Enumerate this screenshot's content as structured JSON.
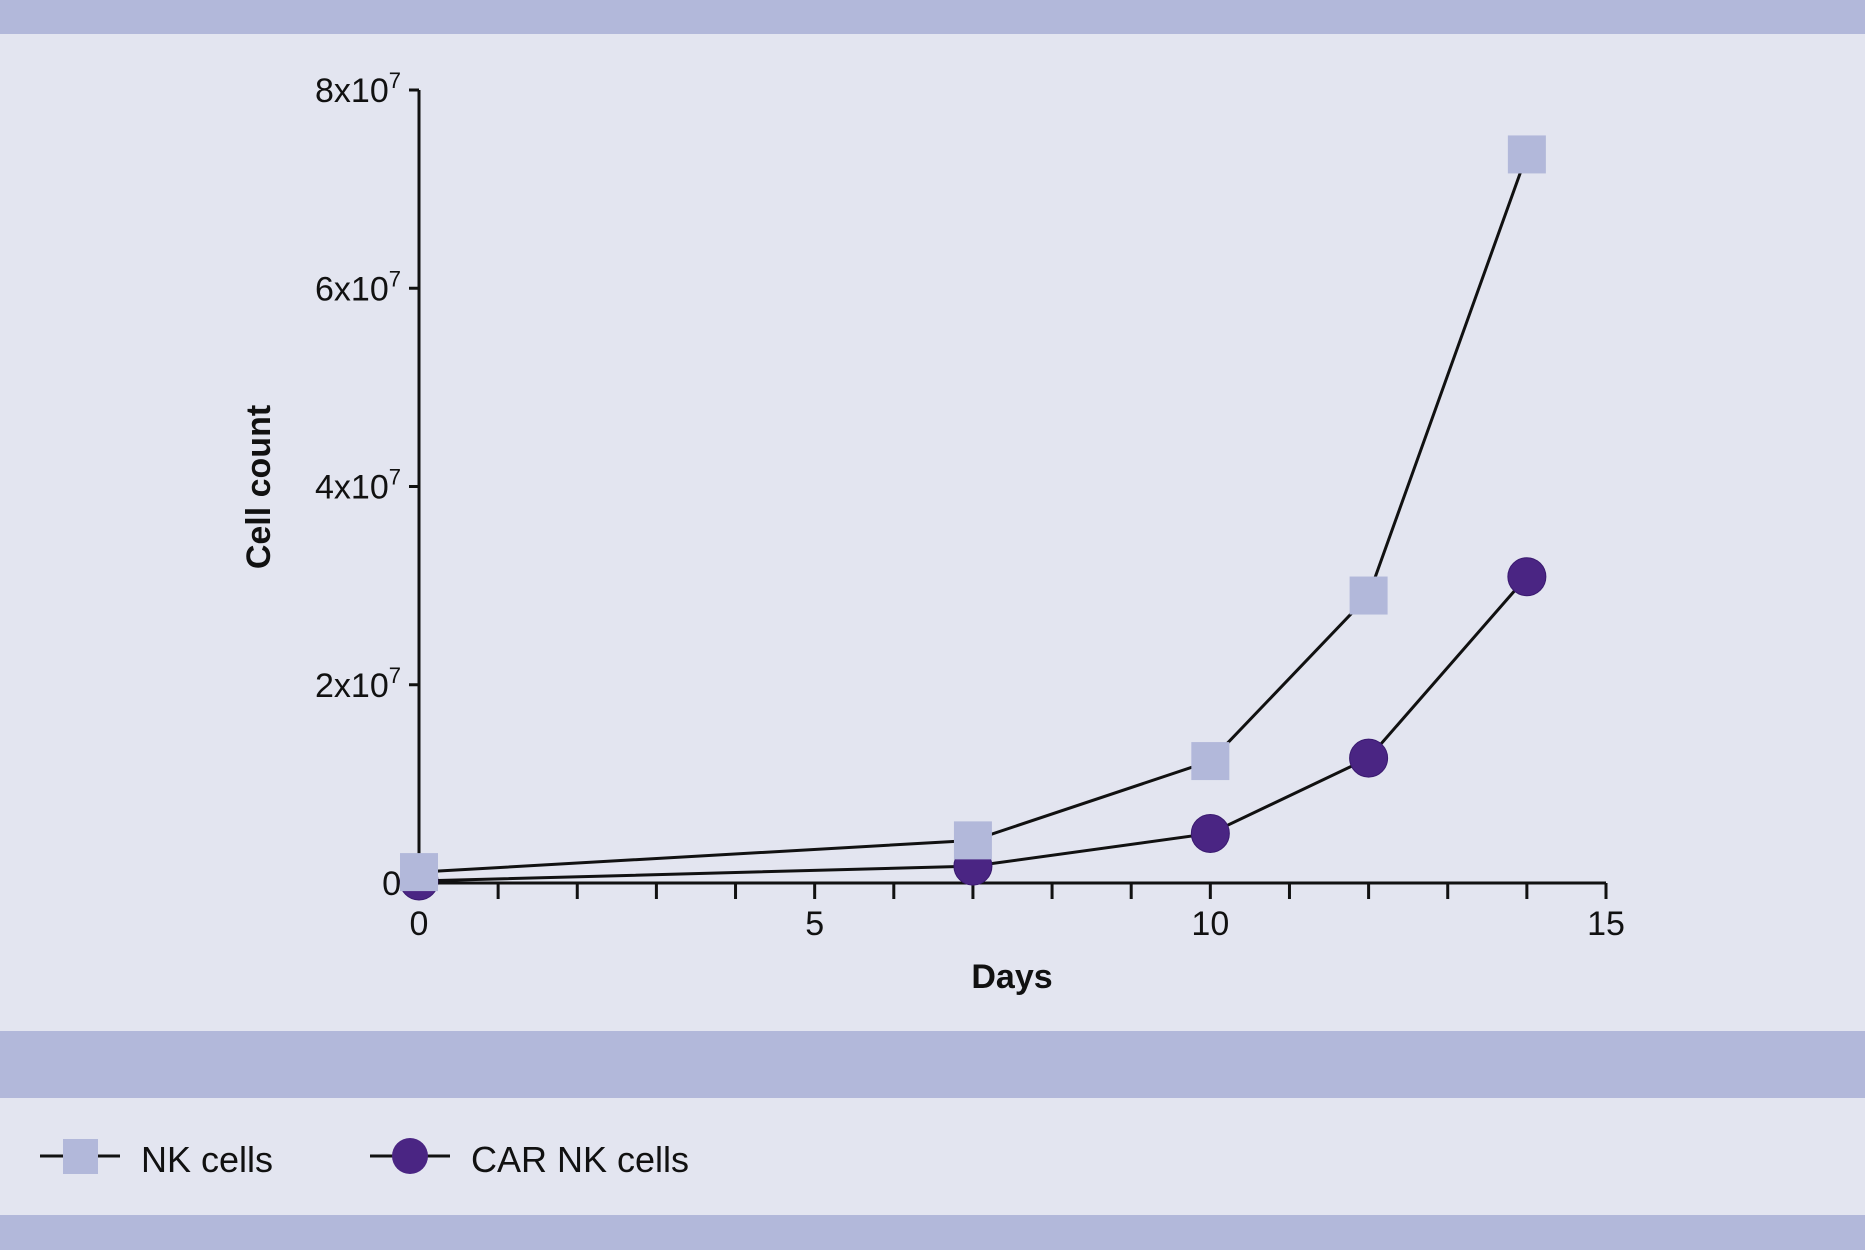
{
  "colors": {
    "band": "#b2b8da",
    "background": "#e3e5f0",
    "nk_marker": "#b2b8da",
    "car_nk_marker": "#4a2583",
    "line": "#111111"
  },
  "chart_data": {
    "type": "line",
    "xlabel": "Days",
    "ylabel": "Cell count",
    "xlim": [
      0,
      15
    ],
    "ylim": [
      0,
      80000000
    ],
    "x_ticks": [
      0,
      5,
      10,
      15
    ],
    "x_tick_labels": [
      "0",
      "5",
      "10",
      "15"
    ],
    "x_minor_ticks": [
      1,
      2,
      3,
      4,
      6,
      7,
      8,
      9,
      11,
      12,
      13,
      14
    ],
    "y_ticks": [
      0,
      20000000,
      40000000,
      60000000,
      80000000
    ],
    "y_tick_labels": [
      {
        "base": "0",
        "exp": ""
      },
      {
        "base": "2x10",
        "exp": "7"
      },
      {
        "base": "4x10",
        "exp": "7"
      },
      {
        "base": "6x10",
        "exp": "7"
      },
      {
        "base": "8x10",
        "exp": "7"
      }
    ],
    "grid": false,
    "legend_position": "bottom",
    "series": [
      {
        "name": "NK cells",
        "marker": "square",
        "color": "#b2b8da",
        "x": [
          0,
          7,
          10,
          12,
          14
        ],
        "y": [
          1100000,
          4300000,
          12300000,
          29000000,
          73500000
        ]
      },
      {
        "name": "CAR NK cells",
        "marker": "circle",
        "color": "#4a2583",
        "x": [
          0,
          7,
          10,
          12,
          14
        ],
        "y": [
          200000,
          1700000,
          5000000,
          12600000,
          30900000
        ]
      }
    ]
  }
}
